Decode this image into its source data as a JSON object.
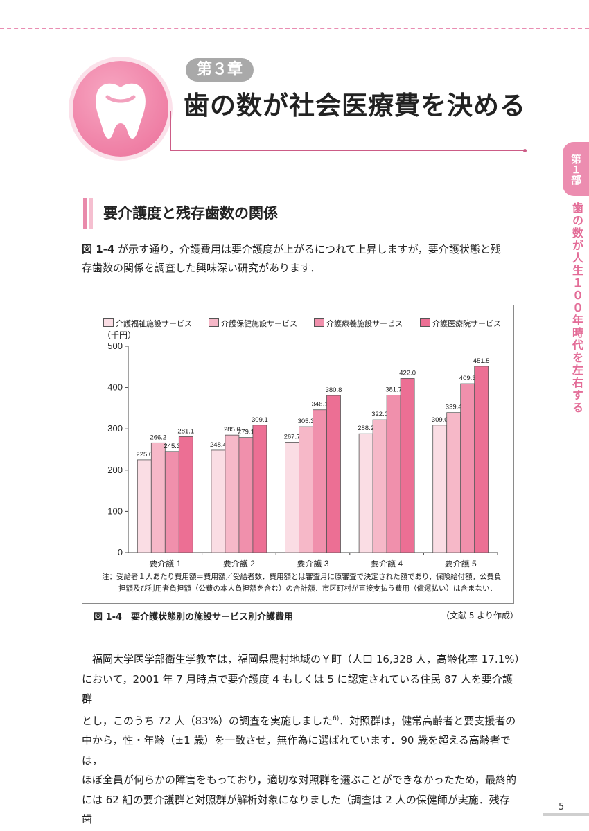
{
  "header": {
    "chapter_label": "第３章",
    "chapter_title": "歯の数が社会医療費を決める"
  },
  "side_tab": {
    "part_label": "第１部",
    "part_title": "歯の数が人生１００年時代を左右する"
  },
  "section": {
    "heading": "要介護度と残存歯数の関係"
  },
  "intro": {
    "ref": "図 1-4",
    "line1": "が示す通り，介護費用は要介護度が上がるにつれて上昇しますが，要介護状態と残",
    "line2": "存歯数の関係を調査した興味深い研究があります．"
  },
  "chart_data": {
    "type": "bar",
    "ylabel": "（千円）",
    "ylim": [
      0,
      500
    ],
    "yticks": [
      0,
      100,
      200,
      300,
      400,
      500
    ],
    "categories": [
      "要介護 1",
      "要介護 2",
      "要介護 3",
      "要介護 4",
      "要介護 5"
    ],
    "series": [
      {
        "name": "介護福祉施設サービス",
        "color": "#fadde4",
        "values": [
          225.0,
          248.4,
          267.7,
          288.2,
          309.0
        ]
      },
      {
        "name": "介護保健施設サービス",
        "color": "#f6b8c8",
        "values": [
          266.2,
          285.0,
          305.3,
          322.0,
          339.4
        ]
      },
      {
        "name": "介護療養施設サービス",
        "color": "#f090ac",
        "values": [
          245.3,
          279.1,
          346.1,
          381.7,
          409.3
        ]
      },
      {
        "name": "介護医療院サービス",
        "color": "#ec6f94",
        "values": [
          281.1,
          309.1,
          380.8,
          422.0,
          451.5
        ]
      }
    ],
    "data_labels": [
      [
        "225.0",
        "248.4",
        "267.7",
        "288.2",
        "309.0"
      ],
      [
        "266.2",
        "285.0",
        "305.3",
        "322.0",
        "339.4"
      ],
      [
        "245.3",
        "279.1",
        "346.1",
        "381.7",
        "409.3"
      ],
      [
        "281.1",
        "309.1",
        "380.8",
        "422.0",
        "451.5"
      ]
    ],
    "legend_position": "top",
    "grid": false
  },
  "figure": {
    "note_line1": "注：受給者１人あたり費用額＝費用額／受給者数．費用額とは審査月に原審査で決定された額であり，保険給付額，公費負",
    "note_line2": "担額及び利用者負担額（公費の本人負担額を含む）の合計額．市区町村が直接支払う費用（償還払い）は含まない．",
    "caption": "図 1-4　要介護状態別の施設サービス別介護費用",
    "source": "（文献 5 より作成）"
  },
  "body": {
    "line1": "福岡大学医学部衛生学教室は，福岡県農村地域のＹ町（人口 16,328 人，高齢化率 17.1%）",
    "line2": "において，2001 年 7 月時点で要介護度 4 もしくは 5 に認定されている住民 87 人を要介護群",
    "line3a": "とし，このうち 72 人（83%）の調査を実施しました",
    "line3sup": "6)",
    "line3b": "．対照群は，健常高齢者と要支援者の",
    "line4": "中から，性・年齢（±1 歳）を一致させ，無作為に選ばれています．90 歳を超える高齢者では，",
    "line5": "ほぼ全員が何らかの障害をもっており，適切な対照群を選ぶことができなかったため，最終的",
    "line6": "には 62 組の要介護群と対照群が解析対象になりました（調査は 2 人の保健師が実施．残存歯"
  },
  "page": {
    "number": "5"
  },
  "colors": {
    "accent": "#e36c97",
    "badge": "#a9a9a9"
  }
}
